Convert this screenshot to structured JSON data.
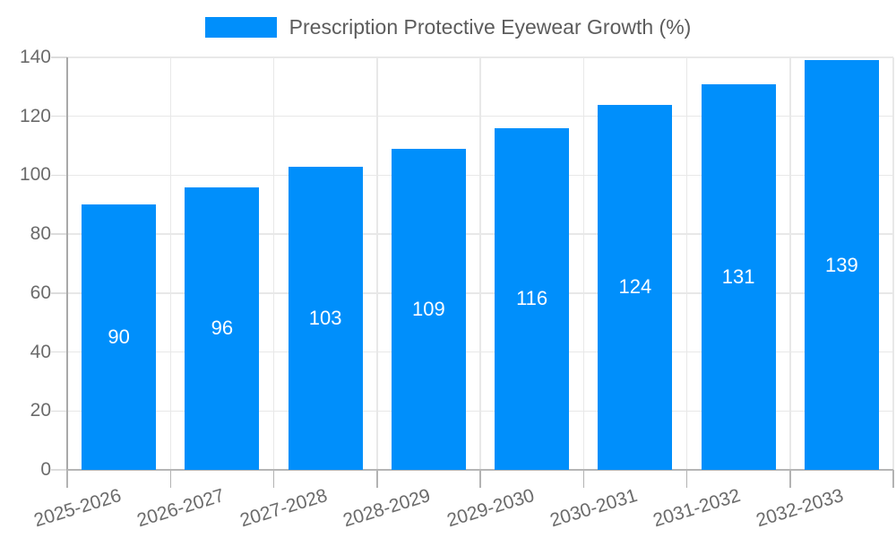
{
  "legend": {
    "label": "Prescription Protective Eyewear Growth (%)",
    "swatch_color": "#008FFB"
  },
  "chart_data": {
    "type": "bar",
    "title": "Prescription Protective Eyewear Growth (%)",
    "categories": [
      "2025-2026",
      "2026-2027",
      "2027-2028",
      "2028-2029",
      "2029-2030",
      "2030-2031",
      "2031-2032",
      "2032-2033"
    ],
    "values": [
      90,
      96,
      103,
      109,
      116,
      124,
      131,
      139
    ],
    "bar_color": "#008FFB",
    "value_label_color": "#ffffff",
    "xlabel": "",
    "ylabel": "",
    "ylim": [
      0,
      140
    ],
    "yticks": [
      0,
      20,
      40,
      60,
      80,
      100,
      120,
      140
    ],
    "grid": true,
    "legend_position": "top",
    "x_tick_rotation_deg": -17
  },
  "style": {
    "grid_color": "#e8e8e8",
    "axis_line_color": "#a9a9a9",
    "x_axis_line_color": "#b5b5b5",
    "x_tick_color": "#b3b3b3",
    "y_tick_color": "#dcdcdc",
    "tick_label_color": "#6b6b6b",
    "legend_text_color": "#5c5c5c"
  }
}
